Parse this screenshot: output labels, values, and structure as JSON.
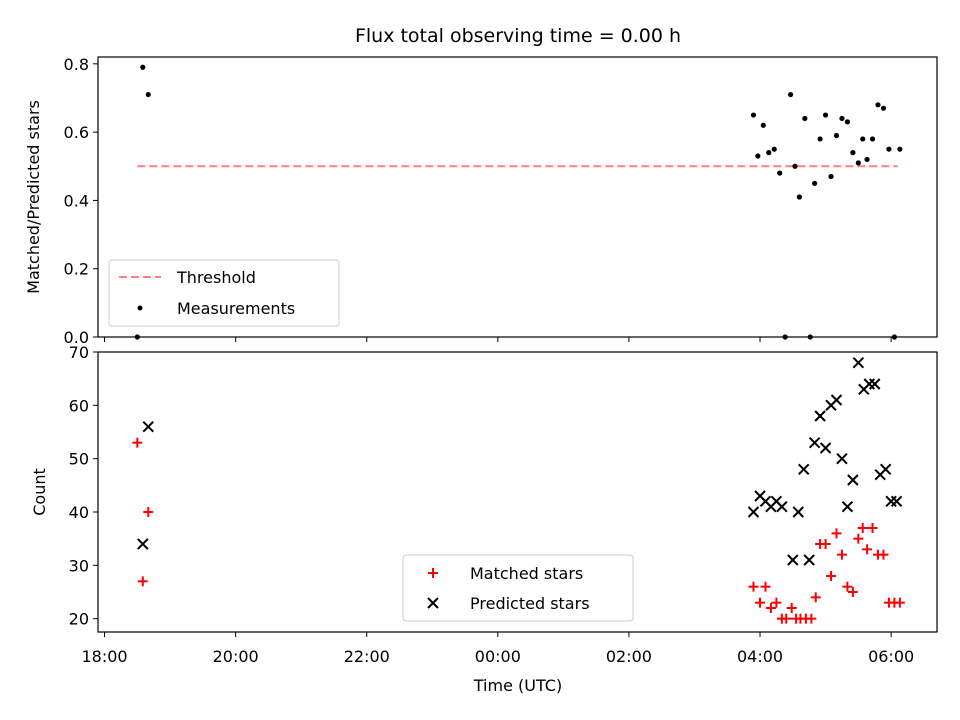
{
  "chart_data": {
    "type": "scatter",
    "title": "Flux total observing time = 0.00 h",
    "xlabel": "Time (UTC)",
    "x_tick_labels": [
      "18:00",
      "20:00",
      "22:00",
      "00:00",
      "02:00",
      "04:00",
      "06:00"
    ],
    "x_tick_hours": [
      0,
      2,
      4,
      6,
      8,
      10,
      12
    ],
    "x_origin": "18:00",
    "xlim_hours": [
      -0.1,
      12.7
    ],
    "colors": {
      "threshold": "#ff7f7f",
      "measurements": "#000000",
      "matched": "#ff0000",
      "predicted": "#000000"
    },
    "panels": [
      {
        "ylabel": "Matched/Predicted stars",
        "ylim": [
          0,
          0.82
        ],
        "yticks": [
          0.0,
          0.2,
          0.4,
          0.6,
          0.8
        ],
        "ytick_labels": [
          "0.0",
          "0.2",
          "0.4",
          "0.6",
          "0.8"
        ],
        "legend": {
          "position": "lower-left",
          "entries": [
            "Threshold",
            "Measurements"
          ]
        },
        "threshold": {
          "name": "Threshold",
          "y": 0.5,
          "x_start": "18:30",
          "x_end": "06:06"
        },
        "measurements": {
          "name": "Measurements",
          "x": [
            "18:30",
            "18:35",
            "18:40",
            "03:54",
            "03:58",
            "04:03",
            "04:08",
            "04:13",
            "04:18",
            "04:23",
            "04:28",
            "04:32",
            "04:36",
            "04:41",
            "04:46",
            "04:50",
            "04:55",
            "05:00",
            "05:05",
            "05:10",
            "05:15",
            "05:20",
            "05:25",
            "05:30",
            "05:34",
            "05:38",
            "05:43",
            "05:48",
            "05:53",
            "05:58",
            "06:03",
            "06:08"
          ],
          "y": [
            0.0,
            0.79,
            0.71,
            0.65,
            0.53,
            0.62,
            0.54,
            0.55,
            0.48,
            0.0,
            0.71,
            0.5,
            0.41,
            0.64,
            0.0,
            0.45,
            0.58,
            0.65,
            0.47,
            0.59,
            0.64,
            0.63,
            0.54,
            0.51,
            0.58,
            0.52,
            0.58,
            0.68,
            0.67,
            0.55,
            0.0,
            0.55
          ]
        }
      },
      {
        "ylabel": "Count",
        "ylim": [
          17.5,
          70
        ],
        "yticks": [
          20,
          30,
          40,
          50,
          60,
          70
        ],
        "ytick_labels": [
          "20",
          "30",
          "40",
          "50",
          "60",
          "70"
        ],
        "legend": {
          "position": "lower-center",
          "entries": [
            "Matched stars",
            "Predicted stars"
          ]
        },
        "matched": {
          "name": "Matched stars",
          "x": [
            "18:30",
            "18:35",
            "18:40",
            "03:54",
            "04:00",
            "04:05",
            "04:10",
            "04:15",
            "04:20",
            "04:24",
            "04:29",
            "04:33",
            "04:37",
            "04:42",
            "04:47",
            "04:51",
            "04:55",
            "05:00",
            "05:05",
            "05:10",
            "05:15",
            "05:20",
            "05:25",
            "05:30",
            "05:34",
            "05:38",
            "05:43",
            "05:48",
            "05:53",
            "05:58",
            "06:03",
            "06:08"
          ],
          "y": [
            53,
            27,
            40,
            26,
            23,
            26,
            22,
            23,
            20,
            20,
            22,
            20,
            20,
            20,
            20,
            24,
            34,
            34,
            28,
            36,
            32,
            26,
            25,
            35,
            37,
            33,
            37,
            32,
            32,
            23,
            23,
            23
          ]
        }
      }
    ]
  },
  "extra_predicted": {
    "name": "Predicted stars",
    "x": [
      "18:35",
      "18:40",
      "03:54",
      "04:00",
      "04:05",
      "04:10",
      "04:15",
      "04:20",
      "04:30",
      "04:35",
      "04:40",
      "04:45",
      "04:50",
      "04:55",
      "05:00",
      "05:05",
      "05:10",
      "05:15",
      "05:20",
      "05:25",
      "05:30",
      "05:35",
      "05:40",
      "05:45",
      "05:50",
      "05:55",
      "06:00",
      "06:05"
    ],
    "y": [
      34,
      56,
      40,
      43,
      42,
      41,
      42,
      41,
      31,
      40,
      48,
      31,
      53,
      58,
      52,
      60,
      61,
      50,
      41,
      46,
      68,
      63,
      64,
      64,
      47,
      48,
      42,
      42
    ]
  }
}
